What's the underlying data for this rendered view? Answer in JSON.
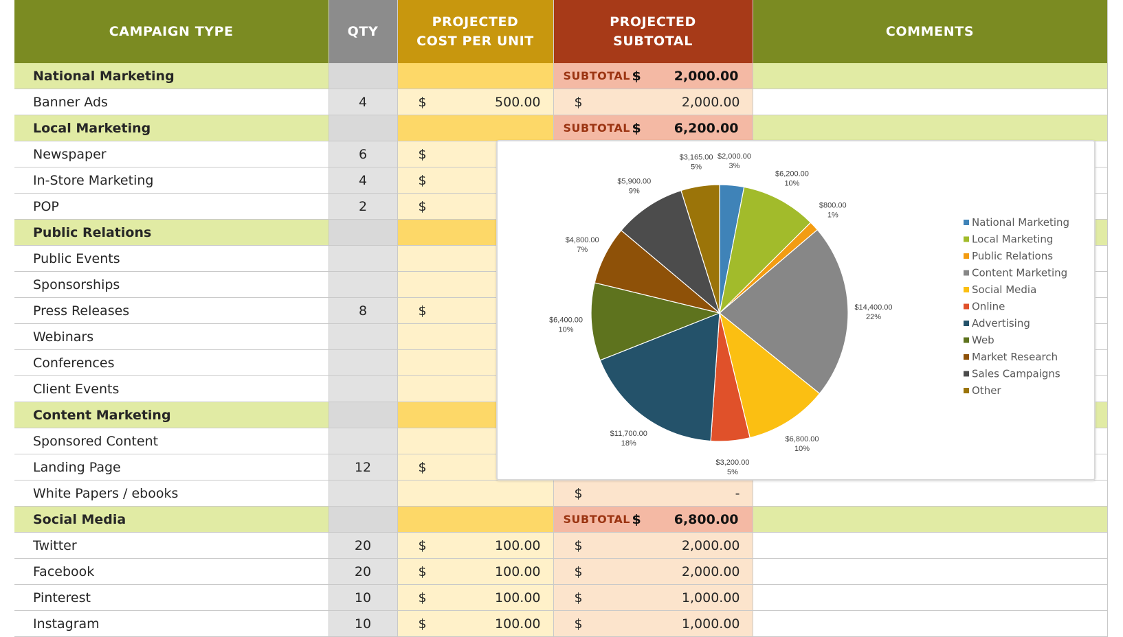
{
  "headers": {
    "type": "CAMPAIGN TYPE",
    "qty": "QTY",
    "cost_l1": "PROJECTED",
    "cost_l2": "COST PER UNIT",
    "sub_l1": "PROJECTED",
    "sub_l2": "SUBTOTAL",
    "comments": "COMMENTS"
  },
  "subtotal_label": "SUBTOTAL",
  "currency": "$",
  "rows": [
    {
      "kind": "group",
      "name": "National Marketing",
      "subtotal": "2,000.00"
    },
    {
      "kind": "item",
      "name": "Banner Ads",
      "qty": "4",
      "cost": "500.00",
      "subtotal": "2,000.00"
    },
    {
      "kind": "group",
      "name": "Local Marketing",
      "subtotal": "6,200.00"
    },
    {
      "kind": "item",
      "name": "Newspaper",
      "qty": "6",
      "cost": "",
      "subtotal": "",
      "cost_dollar": true
    },
    {
      "kind": "item",
      "name": "In-Store Marketing",
      "qty": "4",
      "cost": "",
      "subtotal": "",
      "cost_dollar": true
    },
    {
      "kind": "item",
      "name": "POP",
      "qty": "2",
      "cost": "",
      "subtotal": "",
      "cost_dollar": true
    },
    {
      "kind": "group",
      "name": "Public Relations",
      "subtotal": ""
    },
    {
      "kind": "item",
      "name": "Public Events",
      "qty": "",
      "cost": "",
      "subtotal": ""
    },
    {
      "kind": "item",
      "name": "Sponsorships",
      "qty": "",
      "cost": "",
      "subtotal": ""
    },
    {
      "kind": "item",
      "name": "Press Releases",
      "qty": "8",
      "cost": "",
      "subtotal": "",
      "cost_dollar": true
    },
    {
      "kind": "item",
      "name": "Webinars",
      "qty": "",
      "cost": "",
      "subtotal": ""
    },
    {
      "kind": "item",
      "name": "Conferences",
      "qty": "",
      "cost": "",
      "subtotal": ""
    },
    {
      "kind": "item",
      "name": "Client Events",
      "qty": "",
      "cost": "",
      "subtotal": ""
    },
    {
      "kind": "group",
      "name": "Content Marketing",
      "subtotal": ""
    },
    {
      "kind": "item",
      "name": "Sponsored Content",
      "qty": "",
      "cost": "",
      "subtotal": ""
    },
    {
      "kind": "item",
      "name": "Landing Page",
      "qty": "12",
      "cost": "",
      "subtotal": "",
      "cost_dollar": true
    },
    {
      "kind": "item",
      "name": "White Papers / ebooks",
      "qty": "",
      "cost": "",
      "subtotal": "-",
      "sub_dollar": true
    },
    {
      "kind": "group",
      "name": "Social Media",
      "subtotal": "6,800.00"
    },
    {
      "kind": "item",
      "name": "Twitter",
      "qty": "20",
      "cost": "100.00",
      "subtotal": "2,000.00"
    },
    {
      "kind": "item",
      "name": "Facebook",
      "qty": "20",
      "cost": "100.00",
      "subtotal": "2,000.00"
    },
    {
      "kind": "item",
      "name": "Pinterest",
      "qty": "10",
      "cost": "100.00",
      "subtotal": "1,000.00"
    },
    {
      "kind": "item",
      "name": "Instagram",
      "qty": "10",
      "cost": "100.00",
      "subtotal": "1,000.00"
    }
  ],
  "chart_data": {
    "type": "pie",
    "title": "",
    "legend_position": "right",
    "slices": [
      {
        "name": "National Marketing",
        "value": 2000,
        "value_label": "$2,000.00",
        "pct_label": "3%",
        "color": "#3f83b8"
      },
      {
        "name": "Local Marketing",
        "value": 6200,
        "value_label": "$6,200.00",
        "pct_label": "10%",
        "color": "#a2bb2b"
      },
      {
        "name": "Public Relations",
        "value": 800,
        "value_label": "$800.00",
        "pct_label": "1%",
        "color": "#f39c12"
      },
      {
        "name": "Content Marketing",
        "value": 14400,
        "value_label": "$14,400.00",
        "pct_label": "22%",
        "color": "#878787"
      },
      {
        "name": "Social Media",
        "value": 6800,
        "value_label": "$6,800.00",
        "pct_label": "10%",
        "color": "#fbbf12"
      },
      {
        "name": "Online",
        "value": 3200,
        "value_label": "$3,200.00",
        "pct_label": "5%",
        "color": "#e0512a"
      },
      {
        "name": "Advertising",
        "value": 11700,
        "value_label": "$11,700.00",
        "pct_label": "18%",
        "color": "#24526a"
      },
      {
        "name": "Web",
        "value": 6400,
        "value_label": "$6,400.00",
        "pct_label": "10%",
        "color": "#5e731e"
      },
      {
        "name": "Market Research",
        "value": 4800,
        "value_label": "$4,800.00",
        "pct_label": "7%",
        "color": "#8e5108"
      },
      {
        "name": "Sales Campaigns",
        "value": 5900,
        "value_label": "$5,900.00",
        "pct_label": "9%",
        "color": "#4c4c4c"
      },
      {
        "name": "Other",
        "value": 3165,
        "value_label": "$3,165.00",
        "pct_label": "5%",
        "color": "#9b7409"
      }
    ]
  }
}
